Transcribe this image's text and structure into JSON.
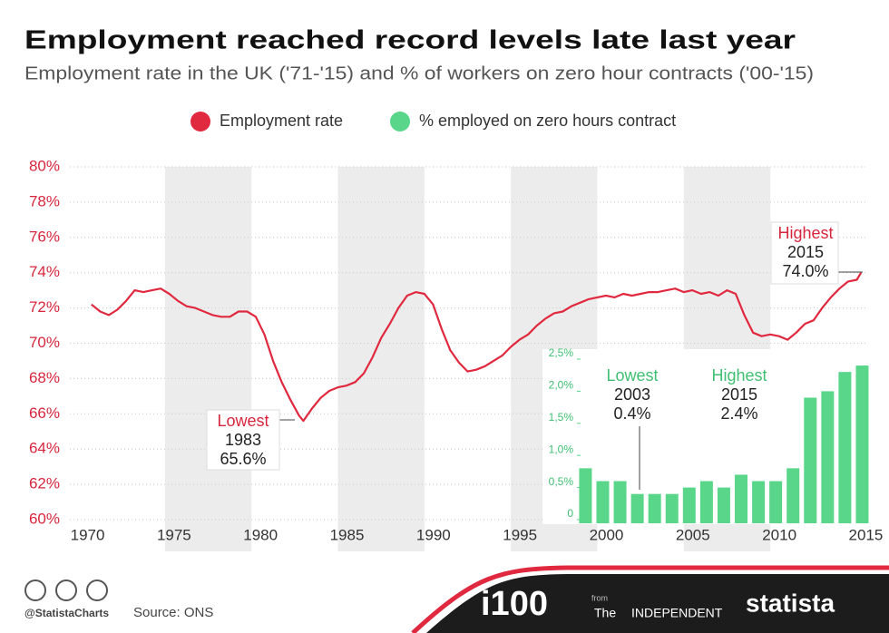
{
  "chart_data": [
    {
      "type": "line",
      "title": "Employment reached record levels late last year",
      "subtitle": "Employment rate in the UK ('71-'15) and % of workers on zero hour contracts ('00-'15)",
      "x": [
        1970.75,
        1971.25,
        1971.75,
        1972.25,
        1972.75,
        1973.25,
        1973.75,
        1974.25,
        1974.75,
        1975.25,
        1975.75,
        1976.25,
        1976.75,
        1977.25,
        1977.75,
        1978.25,
        1978.75,
        1979.25,
        1979.75,
        1980.25,
        1980.75,
        1981.25,
        1981.75,
        1982.25,
        1982.75,
        1983,
        1983.5,
        1984,
        1984.5,
        1985,
        1985.5,
        1986,
        1986.5,
        1987,
        1987.5,
        1988,
        1988.5,
        1989,
        1989.5,
        1990,
        1990.5,
        1991,
        1991.5,
        1992,
        1992.5,
        1993,
        1993.5,
        1994,
        1994.5,
        1995,
        1995.5,
        1996,
        1996.5,
        1997,
        1997.5,
        1998,
        1998.5,
        1999,
        1999.5,
        2000,
        2000.5,
        2001,
        2001.5,
        2002,
        2002.5,
        2003,
        2003.5,
        2004,
        2004.5,
        2005,
        2005.5,
        2006,
        2006.5,
        2007,
        2007.5,
        2008,
        2008.5,
        2009,
        2009.5,
        2010,
        2010.5,
        2011,
        2011.5,
        2012,
        2012.5,
        2013,
        2013.5,
        2014,
        2014.5,
        2015,
        2015.25
      ],
      "series": [
        {
          "name": "Employment rate",
          "color": "#e0293f",
          "values": [
            72.2,
            71.8,
            71.6,
            71.9,
            72.4,
            73.0,
            72.9,
            73.0,
            73.1,
            72.8,
            72.4,
            72.1,
            72.0,
            71.8,
            71.6,
            71.5,
            71.5,
            71.8,
            71.8,
            71.5,
            70.5,
            69.0,
            67.8,
            66.8,
            65.9,
            65.6,
            66.3,
            66.9,
            67.3,
            67.5,
            67.6,
            67.8,
            68.3,
            69.2,
            70.3,
            71.1,
            72.0,
            72.7,
            72.9,
            72.8,
            72.2,
            70.8,
            69.6,
            68.9,
            68.4,
            68.5,
            68.7,
            69.0,
            69.3,
            69.8,
            70.2,
            70.5,
            71.0,
            71.4,
            71.7,
            71.8,
            72.1,
            72.3,
            72.5,
            72.6,
            72.7,
            72.6,
            72.8,
            72.7,
            72.8,
            72.9,
            72.9,
            73.0,
            73.1,
            72.9,
            73.0,
            72.8,
            72.9,
            72.7,
            73.0,
            72.8,
            71.6,
            70.6,
            70.4,
            70.5,
            70.4,
            70.2,
            70.6,
            71.1,
            71.3,
            72.0,
            72.6,
            73.1,
            73.5,
            73.6,
            74.0
          ]
        }
      ],
      "xlim": [
        1969.5,
        2015.5
      ],
      "xticks": [
        1970,
        1975,
        1980,
        1985,
        1990,
        1995,
        2000,
        2005,
        2010,
        2015
      ],
      "ylim": [
        60,
        80
      ],
      "yticks": [
        {
          "value": 60,
          "label": "60%"
        },
        {
          "value": 62,
          "label": "62%"
        },
        {
          "value": 64,
          "label": "64%"
        },
        {
          "value": 66,
          "label": "66%"
        },
        {
          "value": 68,
          "label": "68%"
        },
        {
          "value": 70,
          "label": "70%"
        },
        {
          "value": 72,
          "label": "72%"
        },
        {
          "value": 74,
          "label": "74%"
        },
        {
          "value": 76,
          "label": "76%"
        },
        {
          "value": 78,
          "label": "78%"
        },
        {
          "value": 80,
          "label": "80%"
        }
      ],
      "grid": true,
      "annotations": [
        {
          "text": [
            "Lowest",
            "1983",
            "65.6%"
          ]
        },
        {
          "text": [
            "Highest",
            "2015",
            "74.0%"
          ]
        }
      ]
    },
    {
      "type": "bar",
      "x": [
        1999,
        2000,
        2001,
        2002,
        2003,
        2004,
        2005,
        2006,
        2007,
        2008,
        2009,
        2010,
        2011,
        2012,
        2013,
        2014,
        2015
      ],
      "series": [
        {
          "name": "% employed on zero hours contract",
          "color": "#5ad68a",
          "values": [
            0.8,
            0.6,
            0.6,
            0.4,
            0.4,
            0.4,
            0.5,
            0.6,
            0.5,
            0.7,
            0.6,
            0.6,
            0.8,
            1.9,
            2.0,
            2.3,
            2.4
          ]
        }
      ],
      "ylim": [
        0,
        2.5
      ],
      "yticks": [
        0,
        {
          "value": 0.5,
          "label": "0,5%"
        },
        {
          "value": 1.0,
          "label": "1,0%"
        },
        {
          "value": 1.5,
          "label": "1,5%"
        },
        {
          "value": 2.0,
          "label": "2,0%"
        },
        {
          "value": 2.5,
          "label": "2,5%"
        }
      ],
      "annotations": [
        {
          "text": [
            "Lowest",
            "2003",
            "0.4%"
          ]
        },
        {
          "text": [
            "Highest",
            "2015",
            "2.4%"
          ]
        }
      ]
    }
  ],
  "footer": {
    "handle": "@StatistaCharts",
    "source": "Source: ONS",
    "brand": "i100",
    "from": "from",
    "the": "The",
    "independent": "INDEPENDENT",
    "statista": "statista"
  }
}
